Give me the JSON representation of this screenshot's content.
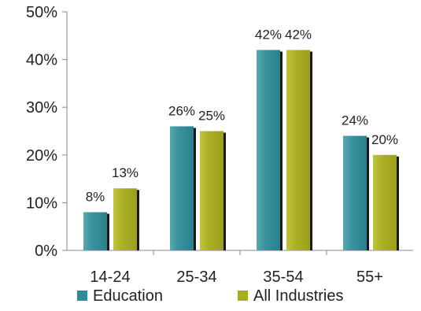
{
  "chart_data": {
    "type": "bar",
    "title": "",
    "xlabel": "",
    "ylabel": "",
    "categories": [
      "14-24",
      "25-34",
      "35-54",
      "55+"
    ],
    "series": [
      {
        "name": "Education",
        "values": [
          8,
          26,
          42,
          24
        ],
        "labels": [
          "8%",
          "26%",
          "42%",
          "24%"
        ],
        "color": "#2e8a96"
      },
      {
        "name": "All Industries",
        "values": [
          13,
          25,
          42,
          20
        ],
        "labels": [
          "13%",
          "25%",
          "42%",
          "20%"
        ],
        "color": "#a8ac20"
      }
    ],
    "ylim": [
      0,
      50
    ],
    "yticks": [
      0,
      10,
      20,
      30,
      40,
      50
    ],
    "ytick_labels": [
      "0%",
      "10%",
      "20%",
      "30%",
      "40%",
      "50%"
    ],
    "grid": false,
    "legend_position": "bottom",
    "axis_color": "#888888"
  }
}
